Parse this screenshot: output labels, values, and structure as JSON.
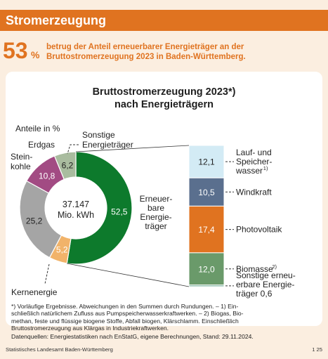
{
  "header": {
    "title": "Stromerzeugung"
  },
  "highlight": {
    "value": "53",
    "unit": "%",
    "text_line1": "betrug der Anteil erneuerbarer Energieträger an der",
    "text_line2": "Bruttostromerzeugung 2023 in Baden-Württemberg."
  },
  "chart_data": {
    "type": "pie",
    "title_line1": "Bruttostromerzeugung 2023*)",
    "title_line2": "nach Energieträgern",
    "subtitle": "Anteile in %",
    "center_value": "37.147",
    "center_unit": "Mio. kWh",
    "slices": [
      {
        "label": "Erneuerbare Energieträger",
        "value": 52.5,
        "value_text": "52,5",
        "color": "#0d7a2c"
      },
      {
        "label": "Kernenergie",
        "value": 5.2,
        "value_text": "5,2",
        "color": "#f1b36a"
      },
      {
        "label": "Steinkohle",
        "value": 25.2,
        "value_text": "25,2",
        "color": "#a5a5a5"
      },
      {
        "label": "Erdgas",
        "value": 10.8,
        "value_text": "10,8",
        "color": "#a24b83"
      },
      {
        "label": "Sonstige Energieträger",
        "value": 6.2,
        "value_text": "6,2",
        "color": "#a9bc9f"
      }
    ],
    "slice_labels": {
      "renewable": [
        "Erneuer-",
        "bare",
        "Energie-",
        "träger"
      ],
      "nuclear": [
        "Kernenergie"
      ],
      "coal": [
        "Stein-",
        "kohle"
      ],
      "gas": [
        "Erdgas"
      ],
      "other": [
        "Sonstige",
        "Energieträger"
      ]
    },
    "breakdown": [
      {
        "label_lines": [
          "Lauf- und",
          "Speicher-",
          "wasser"
        ],
        "footnote": "1)",
        "value": 12.1,
        "value_text": "12,1",
        "color": "#d3ebf5",
        "text_color": "#1f1f1f"
      },
      {
        "label_lines": [
          "Windkraft"
        ],
        "footnote": "",
        "value": 10.5,
        "value_text": "10,5",
        "color": "#5a6f8e",
        "text_color": "#ffffff"
      },
      {
        "label_lines": [
          "Photovoltaik"
        ],
        "footnote": "",
        "value": 17.4,
        "value_text": "17,4",
        "color": "#e07320",
        "text_color": "#ffffff"
      },
      {
        "label_lines": [
          "Biomasse"
        ],
        "footnote": "2)",
        "value": 12.0,
        "value_text": "12,0",
        "color": "#6a9a6a",
        "text_color": "#ffffff"
      },
      {
        "label_lines": [
          "Sonstige erneu-",
          "erbare Energie-",
          "träger 0,6"
        ],
        "footnote": "",
        "value": 0.6,
        "value_text": "0,6",
        "color": "#7fb5a0",
        "text_color": "#1f1f1f"
      }
    ]
  },
  "notes": {
    "line1": "*) Vorläufige Ergebnisse. Abweichungen in den Summen durch Rundungen. – 1) Ein-",
    "line2": "schließlich natürlichem Zufluss aus Pumpspeicherwasserkraftwerken. – 2) Biogas, Bio-",
    "line3": "methan, feste und flüssige biogene Stoffe, Abfall biogen, Klärschlamm. Einschließlich",
    "line4": "Bruttostromerzeugung aus Klärgas in Industriekraftwerken.",
    "sources": "Datenquellen: Energiestatistiken nach EnStatG, eigene Berechnungen, Stand: 29.11.2024."
  },
  "footer": {
    "publisher": "Statistisches Landesamt Baden-Württemberg",
    "page": "1 25"
  }
}
